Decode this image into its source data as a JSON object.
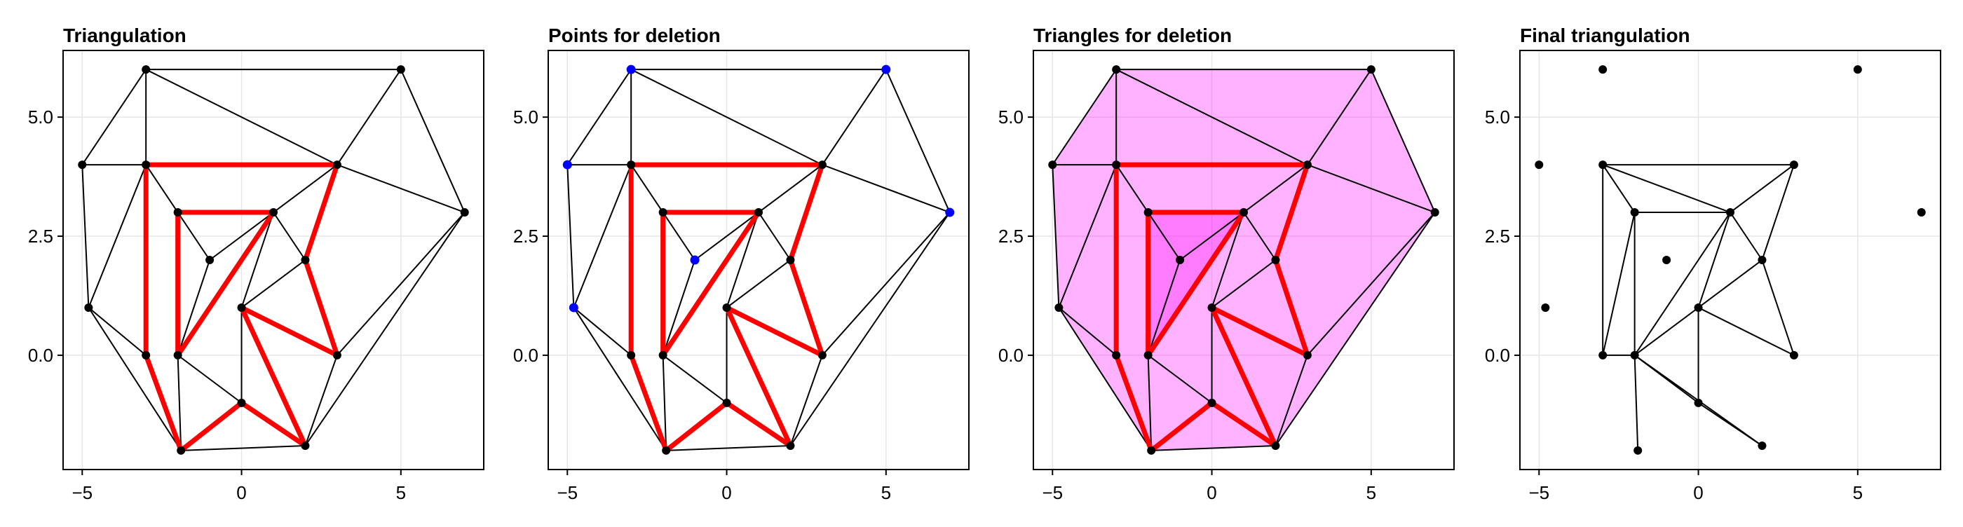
{
  "style": {
    "edge_color": "#000000",
    "constraint_color": "#ff0000",
    "highlight_point_color": "#0000ff",
    "deletion_fill": "#ff00ff",
    "point_color": "#000000",
    "grid_color": "#e6e6e6"
  },
  "chart_data": [
    {
      "type": "triangulation",
      "title": "Triangulation",
      "xlim": [
        -5.6,
        7.6
      ],
      "ylim": [
        -2.4,
        6.4
      ],
      "xticks": [
        -5,
        0,
        5
      ],
      "xtick_labels": [
        "−5",
        "0",
        "5"
      ],
      "yticks": [
        0,
        2.5,
        5
      ],
      "ytick_labels": [
        "0.0",
        "2.5",
        "5.0"
      ],
      "grid": true,
      "legend": "none",
      "points": [
        [
          -3,
          6
        ],
        [
          5,
          6
        ],
        [
          -5,
          4
        ],
        [
          -3,
          4
        ],
        [
          3,
          4
        ],
        [
          7,
          3
        ],
        [
          -2,
          3
        ],
        [
          1,
          3
        ],
        [
          -1,
          2
        ],
        [
          2,
          2
        ],
        [
          -4.8,
          1
        ],
        [
          0,
          1
        ],
        [
          -3,
          0
        ],
        [
          -2,
          0
        ],
        [
          3,
          0
        ],
        [
          0,
          -1
        ],
        [
          -1.9,
          -2
        ],
        [
          2,
          -1.9
        ]
      ],
      "edges": [
        [
          -3,
          6,
          5,
          6
        ],
        [
          -3,
          6,
          -5,
          4
        ],
        [
          -3,
          6,
          -3,
          4
        ],
        [
          -3,
          6,
          3,
          4
        ],
        [
          5,
          6,
          3,
          4
        ],
        [
          5,
          6,
          7,
          3
        ],
        [
          3,
          4,
          7,
          3
        ],
        [
          -5,
          4,
          -3,
          4
        ],
        [
          -5,
          4,
          -4.8,
          1
        ],
        [
          -3,
          4,
          -4.8,
          1
        ],
        [
          -3,
          4,
          -2,
          3
        ],
        [
          -2,
          3,
          -1,
          2
        ],
        [
          -1,
          2,
          1,
          3
        ],
        [
          -1,
          2,
          -2,
          0
        ],
        [
          1,
          3,
          0,
          1
        ],
        [
          1,
          3,
          -2,
          0
        ],
        [
          1,
          3,
          2,
          2
        ],
        [
          1,
          3,
          3,
          4
        ],
        [
          2,
          2,
          0,
          1
        ],
        [
          2,
          2,
          3,
          0
        ],
        [
          3,
          0,
          7,
          3
        ],
        [
          3,
          0,
          2,
          -1.9
        ],
        [
          7,
          3,
          2,
          -1.9
        ],
        [
          -4.8,
          1,
          -3,
          0
        ],
        [
          -4.8,
          1,
          -1.9,
          -2
        ],
        [
          -3,
          0,
          -1.9,
          -2
        ],
        [
          -2,
          0,
          -1.9,
          -2
        ],
        [
          -2,
          0,
          0,
          -1
        ],
        [
          0,
          1,
          0,
          -1
        ],
        [
          0,
          -1,
          2,
          -1.9
        ],
        [
          -1.9,
          -2,
          2,
          -1.9
        ]
      ],
      "constrained_edges": [
        [
          -3,
          4,
          3,
          4
        ],
        [
          3,
          4,
          2,
          2
        ],
        [
          2,
          2,
          3,
          0
        ],
        [
          3,
          0,
          0,
          1
        ],
        [
          0,
          1,
          2,
          -1.9
        ],
        [
          2,
          -1.9,
          0,
          -1
        ],
        [
          0,
          -1,
          -1.9,
          -2
        ],
        [
          -1.9,
          -2,
          -3,
          0
        ],
        [
          -3,
          0,
          -3,
          4
        ],
        [
          -2,
          3,
          1,
          3
        ],
        [
          1,
          3,
          -2,
          0
        ],
        [
          -2,
          0,
          -2,
          3
        ]
      ],
      "highlight_points": [],
      "filled_polygons": []
    },
    {
      "type": "triangulation",
      "title": "Points for deletion",
      "xlim": [
        -5.6,
        7.6
      ],
      "ylim": [
        -2.4,
        6.4
      ],
      "xticks": [
        -5,
        0,
        5
      ],
      "xtick_labels": [
        "−5",
        "0",
        "5"
      ],
      "yticks": [
        0,
        2.5,
        5
      ],
      "ytick_labels": [
        "0.0",
        "2.5",
        "5.0"
      ],
      "grid": true,
      "legend": "none",
      "points": [
        [
          -3,
          4
        ],
        [
          3,
          4
        ],
        [
          -2,
          3
        ],
        [
          1,
          3
        ],
        [
          2,
          2
        ],
        [
          0,
          1
        ],
        [
          -3,
          0
        ],
        [
          -2,
          0
        ],
        [
          3,
          0
        ],
        [
          0,
          -1
        ],
        [
          -1.9,
          -2
        ],
        [
          2,
          -1.9
        ]
      ],
      "edges": [
        [
          -3,
          6,
          5,
          6
        ],
        [
          -3,
          6,
          -5,
          4
        ],
        [
          -3,
          6,
          -3,
          4
        ],
        [
          -3,
          6,
          3,
          4
        ],
        [
          5,
          6,
          3,
          4
        ],
        [
          5,
          6,
          7,
          3
        ],
        [
          3,
          4,
          7,
          3
        ],
        [
          -5,
          4,
          -3,
          4
        ],
        [
          -5,
          4,
          -4.8,
          1
        ],
        [
          -3,
          4,
          -4.8,
          1
        ],
        [
          -3,
          4,
          -2,
          3
        ],
        [
          -2,
          3,
          -1,
          2
        ],
        [
          -1,
          2,
          1,
          3
        ],
        [
          -1,
          2,
          -2,
          0
        ],
        [
          1,
          3,
          0,
          1
        ],
        [
          1,
          3,
          -2,
          0
        ],
        [
          1,
          3,
          2,
          2
        ],
        [
          1,
          3,
          3,
          4
        ],
        [
          2,
          2,
          0,
          1
        ],
        [
          2,
          2,
          3,
          0
        ],
        [
          3,
          0,
          7,
          3
        ],
        [
          3,
          0,
          2,
          -1.9
        ],
        [
          7,
          3,
          2,
          -1.9
        ],
        [
          -4.8,
          1,
          -3,
          0
        ],
        [
          -4.8,
          1,
          -1.9,
          -2
        ],
        [
          -3,
          0,
          -1.9,
          -2
        ],
        [
          -2,
          0,
          -1.9,
          -2
        ],
        [
          -2,
          0,
          0,
          -1
        ],
        [
          0,
          1,
          0,
          -1
        ],
        [
          0,
          -1,
          2,
          -1.9
        ],
        [
          -1.9,
          -2,
          2,
          -1.9
        ]
      ],
      "constrained_edges": [
        [
          -3,
          4,
          3,
          4
        ],
        [
          3,
          4,
          2,
          2
        ],
        [
          2,
          2,
          3,
          0
        ],
        [
          3,
          0,
          0,
          1
        ],
        [
          0,
          1,
          2,
          -1.9
        ],
        [
          2,
          -1.9,
          0,
          -1
        ],
        [
          0,
          -1,
          -1.9,
          -2
        ],
        [
          -1.9,
          -2,
          -3,
          0
        ],
        [
          -3,
          0,
          -3,
          4
        ],
        [
          -2,
          3,
          1,
          3
        ],
        [
          1,
          3,
          -2,
          0
        ],
        [
          -2,
          0,
          -2,
          3
        ]
      ],
      "highlight_points": [
        [
          -3,
          6
        ],
        [
          5,
          6
        ],
        [
          -5,
          4
        ],
        [
          7,
          3
        ],
        [
          -1,
          2
        ],
        [
          -4.8,
          1
        ]
      ],
      "filled_polygons": []
    },
    {
      "type": "triangulation",
      "title": "Triangles for deletion",
      "xlim": [
        -5.6,
        7.6
      ],
      "ylim": [
        -2.4,
        6.4
      ],
      "xticks": [
        -5,
        0,
        5
      ],
      "xtick_labels": [
        "−5",
        "0",
        "5"
      ],
      "yticks": [
        0,
        2.5,
        5
      ],
      "ytick_labels": [
        "0.0",
        "2.5",
        "5.0"
      ],
      "grid": true,
      "legend": "none",
      "points": [
        [
          -3,
          6
        ],
        [
          5,
          6
        ],
        [
          -5,
          4
        ],
        [
          -3,
          4
        ],
        [
          3,
          4
        ],
        [
          7,
          3
        ],
        [
          -2,
          3
        ],
        [
          1,
          3
        ],
        [
          -1,
          2
        ],
        [
          2,
          2
        ],
        [
          -4.8,
          1
        ],
        [
          0,
          1
        ],
        [
          -3,
          0
        ],
        [
          -2,
          0
        ],
        [
          3,
          0
        ],
        [
          0,
          -1
        ],
        [
          -1.9,
          -2
        ],
        [
          2,
          -1.9
        ]
      ],
      "edges": [
        [
          -3,
          6,
          5,
          6
        ],
        [
          -3,
          6,
          -5,
          4
        ],
        [
          -3,
          6,
          -3,
          4
        ],
        [
          -3,
          6,
          3,
          4
        ],
        [
          5,
          6,
          3,
          4
        ],
        [
          5,
          6,
          7,
          3
        ],
        [
          3,
          4,
          7,
          3
        ],
        [
          -5,
          4,
          -3,
          4
        ],
        [
          -5,
          4,
          -4.8,
          1
        ],
        [
          -3,
          4,
          -4.8,
          1
        ],
        [
          -3,
          4,
          -2,
          3
        ],
        [
          -2,
          3,
          -1,
          2
        ],
        [
          -1,
          2,
          1,
          3
        ],
        [
          -1,
          2,
          -2,
          0
        ],
        [
          1,
          3,
          0,
          1
        ],
        [
          1,
          3,
          -2,
          0
        ],
        [
          1,
          3,
          2,
          2
        ],
        [
          1,
          3,
          3,
          4
        ],
        [
          2,
          2,
          0,
          1
        ],
        [
          2,
          2,
          3,
          0
        ],
        [
          3,
          0,
          7,
          3
        ],
        [
          3,
          0,
          2,
          -1.9
        ],
        [
          7,
          3,
          2,
          -1.9
        ],
        [
          -4.8,
          1,
          -3,
          0
        ],
        [
          -4.8,
          1,
          -1.9,
          -2
        ],
        [
          -3,
          0,
          -1.9,
          -2
        ],
        [
          -2,
          0,
          -1.9,
          -2
        ],
        [
          -2,
          0,
          0,
          -1
        ],
        [
          0,
          1,
          0,
          -1
        ],
        [
          0,
          -1,
          2,
          -1.9
        ],
        [
          -1.9,
          -2,
          2,
          -1.9
        ]
      ],
      "constrained_edges": [
        [
          -3,
          4,
          3,
          4
        ],
        [
          3,
          4,
          2,
          2
        ],
        [
          2,
          2,
          3,
          0
        ],
        [
          3,
          0,
          0,
          1
        ],
        [
          0,
          1,
          2,
          -1.9
        ],
        [
          2,
          -1.9,
          0,
          -1
        ],
        [
          0,
          -1,
          -1.9,
          -2
        ],
        [
          -1.9,
          -2,
          -3,
          0
        ],
        [
          -3,
          0,
          -3,
          4
        ],
        [
          -2,
          3,
          1,
          3
        ],
        [
          1,
          3,
          -2,
          0
        ],
        [
          -2,
          0,
          -2,
          3
        ]
      ],
      "highlight_points": [],
      "filled_polygons": [
        [
          [
            -3,
            6
          ],
          [
            5,
            6
          ],
          [
            7,
            3
          ],
          [
            2,
            -1.9
          ],
          [
            -1.9,
            -2
          ],
          [
            -4.8,
            1
          ],
          [
            -5,
            4
          ]
        ],
        [
          [
            -2,
            3
          ],
          [
            1,
            3
          ],
          [
            -1,
            2
          ]
        ],
        [
          [
            -1,
            2
          ],
          [
            -2,
            0
          ],
          [
            -2,
            3
          ]
        ],
        [
          [
            -1,
            2
          ],
          [
            1,
            3
          ],
          [
            -2,
            0
          ]
        ]
      ]
    },
    {
      "type": "triangulation",
      "title": "Final triangulation",
      "xlim": [
        -5.6,
        7.6
      ],
      "ylim": [
        -2.4,
        6.4
      ],
      "xticks": [
        -5,
        0,
        5
      ],
      "xtick_labels": [
        "−5",
        "0",
        "5"
      ],
      "yticks": [
        0,
        2.5,
        5
      ],
      "ytick_labels": [
        "0.0",
        "2.5",
        "5.0"
      ],
      "grid": true,
      "legend": "none",
      "points": [
        [
          -3,
          6
        ],
        [
          5,
          6
        ],
        [
          -5,
          4
        ],
        [
          -3,
          4
        ],
        [
          3,
          4
        ],
        [
          7,
          3
        ],
        [
          -2,
          3
        ],
        [
          1,
          3
        ],
        [
          -1,
          2
        ],
        [
          2,
          2
        ],
        [
          -4.8,
          1
        ],
        [
          0,
          1
        ],
        [
          -3,
          0
        ],
        [
          -2,
          0
        ],
        [
          3,
          0
        ],
        [
          0,
          -1
        ],
        [
          -1.9,
          -2
        ],
        [
          2,
          -1.9
        ]
      ],
      "edges": [
        [
          -3,
          4,
          3,
          4
        ],
        [
          3,
          4,
          1,
          3
        ],
        [
          3,
          4,
          2,
          2
        ],
        [
          -3,
          4,
          -2,
          3
        ],
        [
          -3,
          4,
          1,
          3
        ],
        [
          -3,
          4,
          -3,
          0
        ],
        [
          -2,
          3,
          1,
          3
        ],
        [
          -2,
          3,
          -3,
          0
        ],
        [
          -2,
          3,
          -2,
          0
        ],
        [
          1,
          3,
          -2,
          0
        ],
        [
          1,
          3,
          0,
          1
        ],
        [
          1,
          3,
          2,
          2
        ],
        [
          2,
          2,
          0,
          1
        ],
        [
          2,
          2,
          3,
          0
        ],
        [
          0,
          1,
          3,
          0
        ],
        [
          0,
          1,
          -2,
          0
        ],
        [
          0,
          1,
          0,
          -1
        ],
        [
          -3,
          0,
          -2,
          0
        ],
        [
          -2,
          0,
          -1.9,
          -2
        ],
        [
          -2,
          0,
          0,
          -1
        ],
        [
          -2,
          0,
          2,
          -1.9
        ],
        [
          0,
          -1,
          2,
          -1.9
        ]
      ],
      "constrained_edges": [],
      "highlight_points": [],
      "filled_polygons": []
    }
  ]
}
